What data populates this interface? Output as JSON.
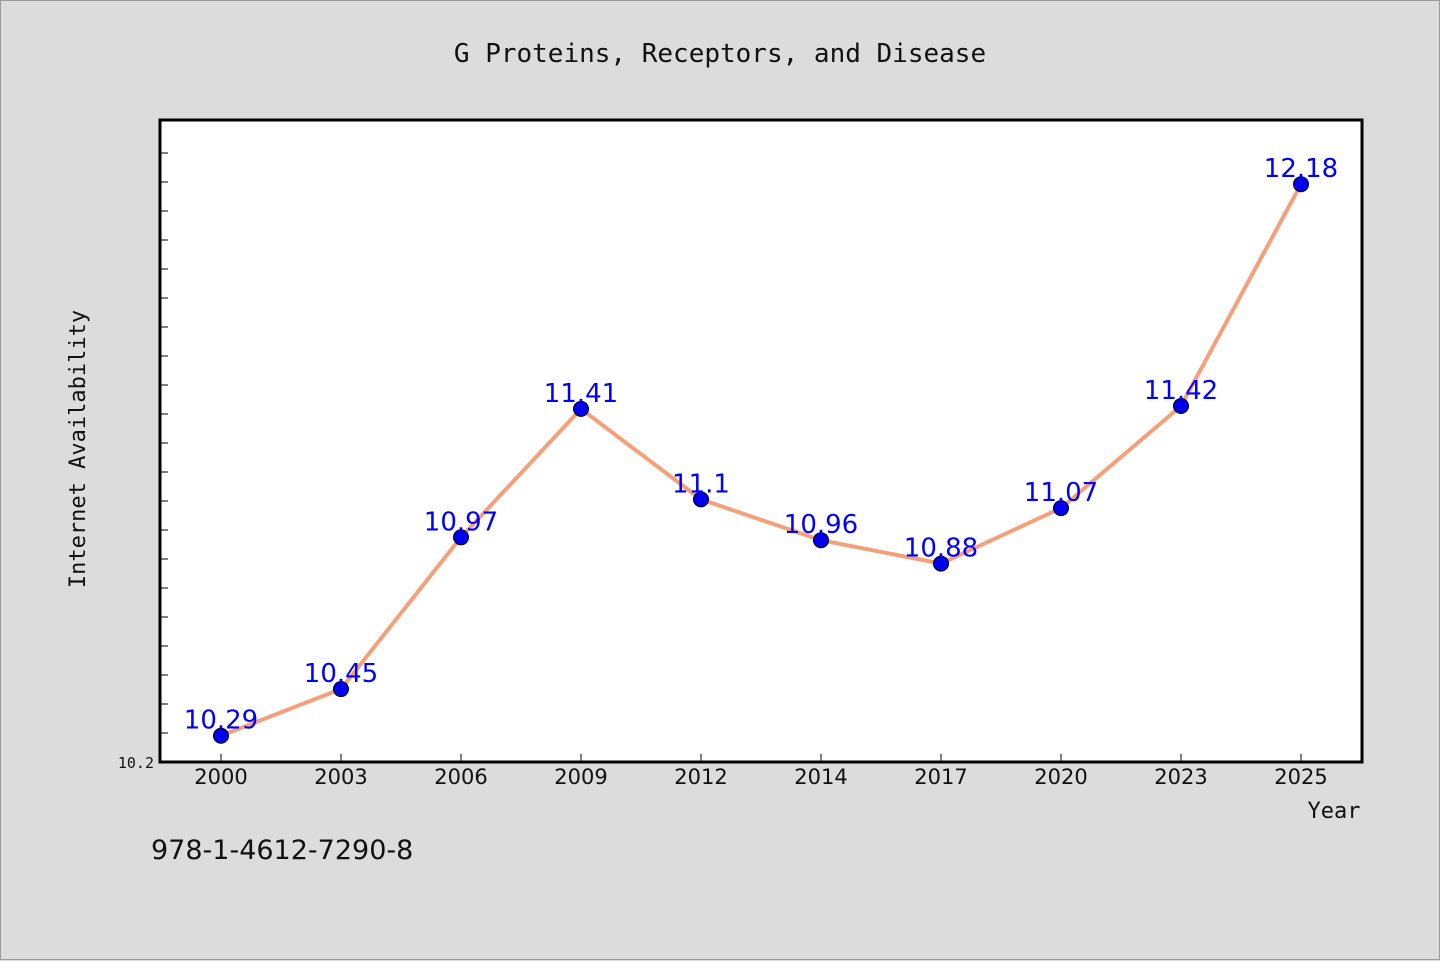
{
  "chart_data": {
    "type": "line",
    "title": "G Proteins, Receptors, and Disease",
    "xlabel": "Year",
    "ylabel": "Internet Availability",
    "categories": [
      "2000",
      "2003",
      "2006",
      "2009",
      "2012",
      "2014",
      "2017",
      "2020",
      "2023",
      "2025"
    ],
    "series": [
      {
        "values": [
          10.29,
          10.45,
          10.97,
          11.41,
          11.1,
          10.96,
          10.88,
          11.07,
          11.42,
          12.18
        ],
        "labels": [
          "10.29",
          "10.45",
          "10.97",
          "11.41",
          "11.1",
          "10.96",
          "10.88",
          "11.07",
          "11.42",
          "12.18"
        ],
        "line_color": "#f4a07a",
        "marker_color": "#0000ee"
      }
    ],
    "ytick_labels": [
      "10.2"
    ],
    "ylim": [
      10.2,
      12.4
    ],
    "grid": false,
    "legend": "none",
    "colors": {
      "background": "#dcdcdc",
      "plot_background": "#ffffff",
      "data_label": "#0000ff"
    }
  },
  "footer": {
    "code": "978-1-4612-7290-8"
  }
}
